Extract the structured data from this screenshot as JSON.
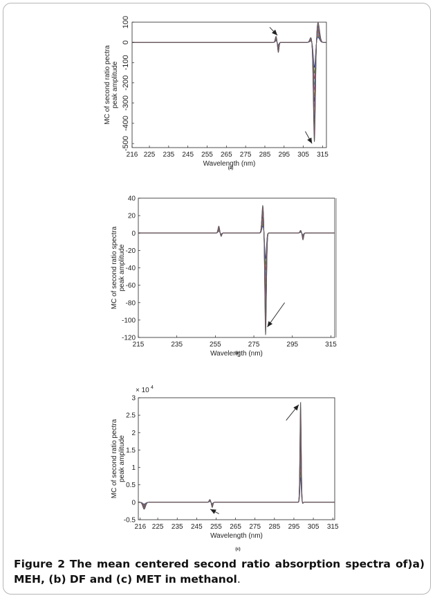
{
  "figure": {
    "label": "Figure 2",
    "caption_text": "The mean centered second ratio absorption spectra of)a) MEH, (b) DF and (c) MET in methanol",
    "caption_end": "."
  },
  "chart_data": [
    {
      "type": "line",
      "panel_label": "(a)",
      "xlabel": "Wavelength (nm)",
      "ylabel": "MC of second ratio pectra\npeak amplitude",
      "xlim": [
        216,
        317
      ],
      "ylim": [
        -520,
        100
      ],
      "xticks": [
        216,
        225,
        235,
        245,
        255,
        265,
        275,
        285,
        295,
        305,
        315
      ],
      "yticks": [
        100,
        0,
        -100,
        -200,
        -300,
        -400,
        -500
      ],
      "ytick_labels": [
        "100",
        "0",
        "-100",
        "-200",
        "-300",
        "-400",
        "-500"
      ],
      "series_shape": {
        "features": [
          {
            "x": 291.5,
            "width": 1.0,
            "peak": 30,
            "trough": -50
          },
          {
            "x": 310,
            "width": 1.5,
            "peak": 25,
            "trough": -500
          },
          {
            "x": 314,
            "width": 2.0,
            "peak": 100,
            "trough": 0
          }
        ],
        "curve_count": 14
      },
      "arrows": [
        {
          "from": [
            287.5,
            75
          ],
          "to": [
            291.5,
            35
          ]
        },
        {
          "from": [
            306,
            -440
          ],
          "to": [
            309.5,
            -500
          ]
        }
      ]
    },
    {
      "type": "line",
      "panel_label": "(b)",
      "xlabel": "Wavelength (nm)",
      "ylabel": "MC of second ratio spectra\npeak amplitude",
      "xlim": [
        215,
        317
      ],
      "ylim": [
        -120,
        40
      ],
      "xticks": [
        215,
        235,
        255,
        275,
        295,
        315
      ],
      "xtick_labels": [
        "215",
        "235",
        "255",
        "275",
        "295",
        "315"
      ],
      "yticks": [
        40,
        20,
        0,
        -20,
        -40,
        -60,
        -80,
        -100,
        -120
      ],
      "ytick_labels": [
        "40",
        "20",
        "0",
        "-20",
        "-40",
        "-60",
        "-80",
        "-100",
        "-120"
      ],
      "series_shape": {
        "features": [
          {
            "x": 257.5,
            "width": 1.0,
            "peak": 8,
            "trough": -4
          },
          {
            "x": 280.5,
            "width": 1.2,
            "peak": 32,
            "trough": -118
          },
          {
            "x": 300,
            "width": 1.0,
            "peak": 3,
            "trough": -8
          }
        ],
        "curve_count": 14
      },
      "arrows": [
        {
          "from": [
            291,
            -80
          ],
          "to": [
            282,
            -108
          ]
        }
      ]
    },
    {
      "type": "line",
      "panel_label": "(c)",
      "xlabel": "Wavelength (nm)",
      "ylabel": "MC of second ratio pectra\npeak  amplitude",
      "exponent_label": "× 10",
      "exponent_power": "4",
      "xlim": [
        215,
        316
      ],
      "ylim": [
        -0.5,
        3
      ],
      "xticks": [
        216,
        225,
        235,
        245,
        255,
        265,
        275,
        285,
        295,
        305,
        315
      ],
      "xtick_labels": [
        "216",
        "225",
        "235",
        "245",
        "255",
        "265",
        "275",
        "285",
        "295",
        "305",
        "315"
      ],
      "yticks": [
        3,
        2.5,
        2,
        1.5,
        1,
        0.5,
        0,
        -0.5
      ],
      "ytick_labels": [
        "3",
        "2.5",
        "2",
        "1.5",
        "1",
        "0.5",
        "0",
        "-0.5"
      ],
      "series_shape": {
        "features": [
          {
            "x": 217,
            "width": 2.0,
            "peak": 0,
            "trough": -0.2
          },
          {
            "x": 252.5,
            "width": 1.0,
            "peak": 0.08,
            "trough": -0.15
          },
          {
            "x": 299,
            "width": 0.8,
            "peak": 2.9,
            "trough": -0.05
          }
        ],
        "curve_count": 14
      },
      "arrows": [
        {
          "from": [
            291,
            2.35
          ],
          "to": [
            297.5,
            2.8
          ]
        },
        {
          "from": [
            256.5,
            -0.33
          ],
          "to": [
            252,
            -0.2
          ]
        }
      ]
    }
  ],
  "palette": [
    "#1f1fd9",
    "#1a9e1a",
    "#d91f1f",
    "#19b5b5",
    "#b51fb5",
    "#a6a61a",
    "#333333",
    "#6a3fd1",
    "#e07b1f",
    "#2a7fd6",
    "#8a1f1f",
    "#1fb56a",
    "#d63f8a",
    "#5a5a5a"
  ]
}
